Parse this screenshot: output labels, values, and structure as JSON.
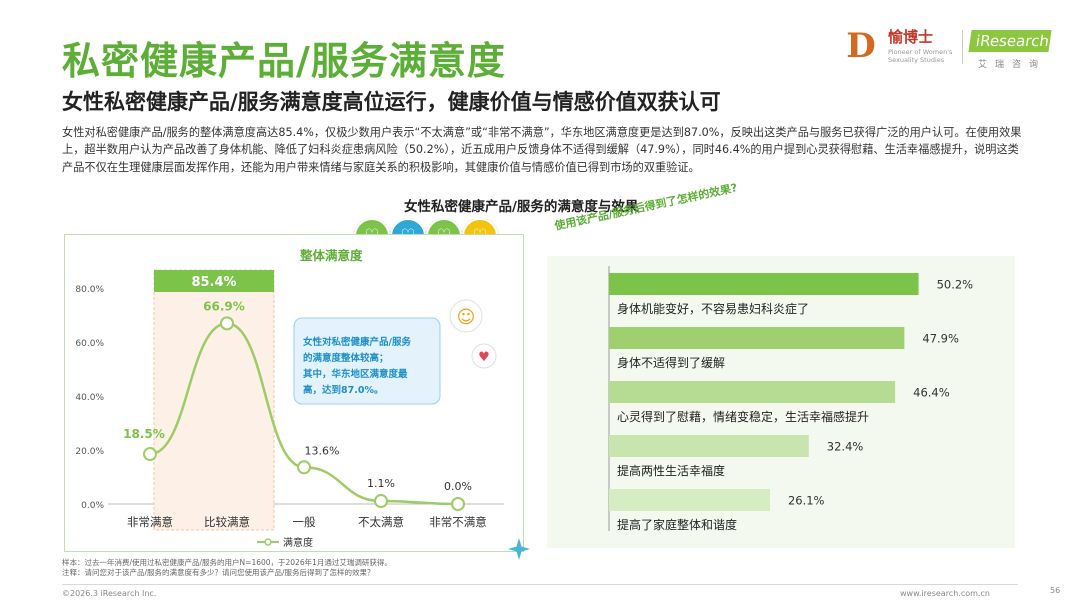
{
  "header": {
    "title": "私密健康产品/服务满意度",
    "subtitle": "女性私密健康产品/服务满意度高位运行，健康价值与情感价值双获认可",
    "body": "女性对私密健康产品/服务的整体满意度高达85.4%，仅极少数用户表示“不太满意”或“非常不满意”，华东地区满意度更是达到87.0%，反映出这类产品与服务已获得广泛的用户认可。在使用效果上，超半数用户认为产品改善了身体机能、降低了妇科炎症患病风险（50.2%），近五成用户反馈身体不适得到缓解（47.9%），同时46.4%的用户提到心灵获得慰藉、生活幸福感提升，说明这类产品不仅在生理健康层面发挥作用，还能为用户带来情绪与家庭关系的积极影响，其健康价值与情感价值已得到市场的双重验证。"
  },
  "logo": {
    "brand_cn": "愉博士",
    "brand_en": "Pioneer of Women's Sexuality Studies",
    "research": "iResearch",
    "research_cn": "艾瑞咨询"
  },
  "chart_title": "女性私密健康产品/服务的满意度与效果",
  "icons": [
    "heart-icon",
    "heart-icon",
    "heart-icon",
    "heart-icon"
  ],
  "icon_colors": [
    "#7cc349",
    "#2fa8d8",
    "#7cc349",
    "#f2c40d"
  ],
  "chart_data": [
    {
      "type": "line",
      "title": "整体满意度",
      "overall_label": "85.4%",
      "categories": [
        "非常满意",
        "比较满意",
        "一般",
        "不太满意",
        "非常不满意"
      ],
      "values": [
        18.5,
        66.9,
        13.6,
        1.1,
        0.0
      ],
      "value_labels": [
        "18.5%",
        "66.9%",
        "13.6%",
        "1.1%",
        "0.0%"
      ],
      "yticks": [
        "0.0%",
        "20.0%",
        "40.0%",
        "60.0%",
        "80.0%"
      ],
      "ylim": [
        0,
        80
      ],
      "legend": "满意度",
      "annotation": "女性对私密健康产品/服务的满意度整体较高；其中，华东地区满意度最高，达到87.0%。",
      "annotation_lines": [
        "女性对私密健康产品/服务",
        "的满意度整体较高；",
        "其中，华东地区满意度最",
        "高，达到87.0%。"
      ],
      "color": "#9ccc65"
    },
    {
      "type": "bar",
      "title": "使用该产品/服务后得到了怎样的效果?",
      "categories": [
        "身体机能变好，不容易患妇科炎症了",
        "身体不适得到了缓解",
        "心灵得到了慰藉，情绪变稳定，生活幸福感提升",
        "提高两性生活幸福度",
        "提高了家庭整体和谐度"
      ],
      "values": [
        50.2,
        47.9,
        46.4,
        32.4,
        26.1
      ],
      "value_labels": [
        "50.2%",
        "47.9%",
        "46.4%",
        "32.4%",
        "26.1%"
      ],
      "colors": [
        "#7cc349",
        "#9ed06f",
        "#b6dc93",
        "#c8e5ad",
        "#d6ecc3"
      ],
      "xlim": [
        0,
        60
      ]
    }
  ],
  "footnote": {
    "sample": "样本：过去一年消费/使用过私密健康产品/服务的用户N=1600，于2026年1月通过艾瑞调研获得。",
    "note": "注释：请问您对于该产品/服务的满意度有多少？请问您使用该产品/服务后得到了怎样的效果？"
  },
  "footer": {
    "copyright": "©2026.3 iResearch Inc.",
    "website": "www.iresearch.com.cn",
    "page": "56"
  }
}
